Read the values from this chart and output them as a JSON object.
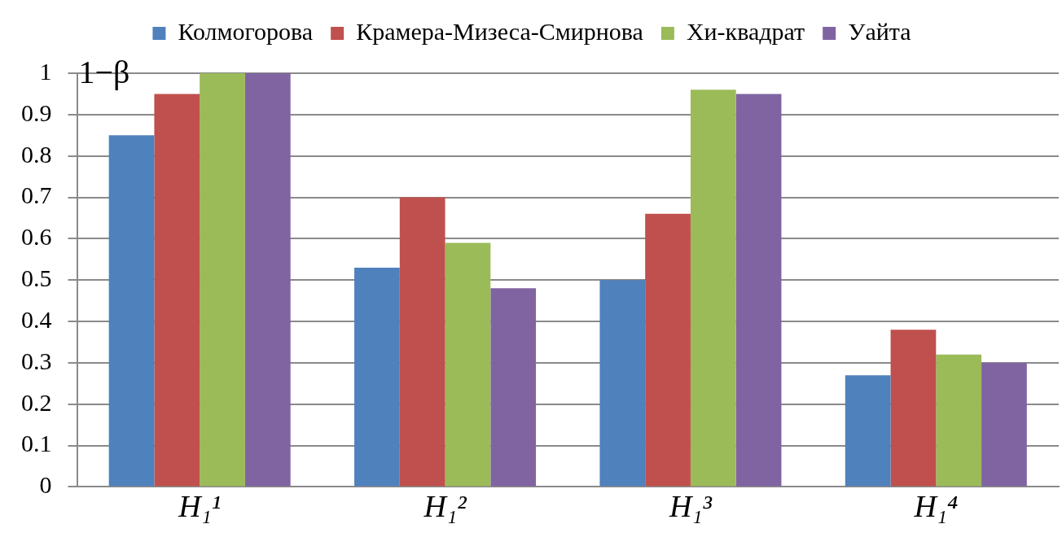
{
  "chart_data": {
    "type": "bar",
    "ylabel": "1−β",
    "categories": [
      "H₁¹",
      "H₁²",
      "H₁³",
      "H₁⁴"
    ],
    "series": [
      {
        "name": "Колмогорова",
        "color": "#4f81bd",
        "values": [
          0.85,
          0.53,
          0.5,
          0.27
        ]
      },
      {
        "name": "Крамера-Мизеса-Смирнова",
        "color": "#c0504d",
        "values": [
          0.95,
          0.7,
          0.66,
          0.38
        ]
      },
      {
        "name": "Хи-квадрат",
        "color": "#9bbb59",
        "values": [
          1,
          0.59,
          0.96,
          0.32
        ]
      },
      {
        "name": "Уайта",
        "color": "#8064a2",
        "values": [
          1,
          0.48,
          0.95,
          0.3
        ]
      }
    ],
    "ylim": [
      0,
      1
    ],
    "yticks": [
      0,
      0.1,
      0.2,
      0.3,
      0.4,
      0.5,
      0.6,
      0.7,
      0.8,
      0.9,
      1
    ],
    "grid": "y",
    "legend": "top"
  }
}
